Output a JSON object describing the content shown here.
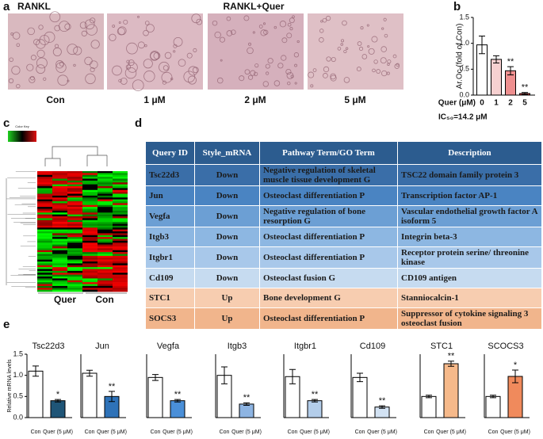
{
  "panel_labels": [
    "a",
    "b",
    "c",
    "d",
    "e"
  ],
  "panel_a": {
    "group_labels": [
      "RANKL",
      "RANKL+Quer"
    ],
    "image_labels": [
      "Con",
      "1 μM",
      "2 μM",
      "5 μM"
    ]
  },
  "panel_c": {
    "color_key": "Color Key",
    "column_labels": [
      "Quer",
      "Con"
    ]
  },
  "panel_d": {
    "header": [
      "Query ID",
      "Style_mRNA",
      "Pathway Term/GO Term",
      "Description"
    ],
    "rows": [
      [
        "Tsc22d3",
        "Down",
        "Negative regulation of skeletal muscle tissue development G",
        "TSC22 domain family protein 3"
      ],
      [
        "Jun",
        "Down",
        "Osteoclast differentiation P",
        "Transcription factor AP-1"
      ],
      [
        "Vegfa",
        "Down",
        "Negative regulation of bone resorption G",
        "Vascular endothelial growth factor A isoform 5"
      ],
      [
        "Itgb3",
        "Down",
        "Osteoclast differentiation P",
        "Integrin beta-3"
      ],
      [
        "Itgbr1",
        "Down",
        "Osteoclast differentiation P",
        "Receptor protein serine/ threonine kinase"
      ],
      [
        "Cd109",
        "Down",
        "Osteoclast fusion G",
        "CD109 antigen"
      ],
      [
        "STC1",
        "Up",
        "Bone development G",
        "Stanniocalcin-1"
      ],
      [
        "SOCS3",
        "Up",
        "Osteoclast differentiation P",
        "Suppressor of cytokine signaling 3 osteoclast fusion"
      ]
    ]
  },
  "chart_data": [
    {
      "type": "bar",
      "y_label": "Ar.Oc (fold of Con)",
      "x_label": "Quer (μM)",
      "note": "IC₅₀=14.2 μM",
      "categories": [
        "0",
        "1",
        "2",
        "5"
      ],
      "values": [
        0.97,
        0.69,
        0.47,
        0.03
      ],
      "errors": [
        0.17,
        0.07,
        0.08,
        0.02
      ],
      "colors": [
        "#ffffff",
        "#f6d0d0",
        "#ee8f8f",
        "#d83a3a"
      ],
      "significance": [
        null,
        null,
        "**",
        "**"
      ],
      "ylim": [
        0,
        1.5
      ],
      "yticks": [
        {
          "value": 0,
          "label": "0.0"
        },
        {
          "value": 0.5,
          "label": "0.5"
        },
        {
          "value": 1,
          "label": "1.0"
        },
        {
          "value": 1.5,
          "label": "1.5"
        }
      ]
    },
    {
      "type": "bar",
      "title": "Tsc22d3",
      "y_label": "Relative mRNA levels",
      "categories": [
        "Con",
        "Quer (5 μM)"
      ],
      "values": [
        1.1,
        0.4
      ],
      "errors": [
        0.12,
        0.03
      ],
      "colors": [
        "#ffffff",
        "#1f5577"
      ],
      "significance": [
        null,
        "*"
      ],
      "ylim": [
        0,
        1.5
      ],
      "yticks": [
        {
          "value": 0,
          "label": "0.0"
        },
        {
          "value": 0.5,
          "label": "0.5"
        },
        {
          "value": 1,
          "label": "1.0"
        },
        {
          "value": 1.5,
          "label": "1.5"
        }
      ]
    },
    {
      "type": "bar",
      "title": "Jun",
      "categories": [
        "Con",
        "Quer (5 μM)"
      ],
      "values": [
        1.05,
        0.5
      ],
      "errors": [
        0.07,
        0.12
      ],
      "colors": [
        "#ffffff",
        "#2e72b8"
      ],
      "significance": [
        null,
        "**"
      ],
      "ylim": [
        0,
        1.5
      ]
    },
    {
      "type": "bar",
      "title": "Vegfa",
      "categories": [
        "Con",
        "Quer (5 μM)"
      ],
      "values": [
        0.95,
        0.4
      ],
      "errors": [
        0.07,
        0.03
      ],
      "colors": [
        "#ffffff",
        "#4a8fd8"
      ],
      "significance": [
        null,
        "**"
      ],
      "ylim": [
        0,
        1.5
      ]
    },
    {
      "type": "bar",
      "title": "Itgb3",
      "categories": [
        "Con",
        "Quer (5 μM)"
      ],
      "values": [
        1.0,
        0.32
      ],
      "errors": [
        0.2,
        0.03
      ],
      "colors": [
        "#ffffff",
        "#8db4e2"
      ],
      "significance": [
        null,
        "**"
      ],
      "ylim": [
        0,
        1.5
      ]
    },
    {
      "type": "bar",
      "title": "Itgbr1",
      "categories": [
        "Con",
        "Quer (5 μM)"
      ],
      "values": [
        0.97,
        0.4
      ],
      "errors": [
        0.17,
        0.03
      ],
      "colors": [
        "#ffffff",
        "#b3cdea"
      ],
      "significance": [
        null,
        "**"
      ],
      "ylim": [
        0,
        1.5
      ]
    },
    {
      "type": "bar",
      "title": "Cd109",
      "categories": [
        "Con",
        "Quer (5 μM)"
      ],
      "values": [
        0.95,
        0.25
      ],
      "errors": [
        0.1,
        0.03
      ],
      "colors": [
        "#ffffff",
        "#d2e2f3"
      ],
      "significance": [
        null,
        "**"
      ],
      "ylim": [
        0,
        1.5
      ]
    },
    {
      "type": "bar",
      "title": "STC1",
      "categories": [
        "Con",
        "Quer (5 μM)"
      ],
      "values": [
        1.0,
        2.55
      ],
      "errors": [
        0.06,
        0.12
      ],
      "colors": [
        "#ffffff",
        "#f6b98a"
      ],
      "significance": [
        null,
        "**"
      ],
      "ylim": [
        0,
        3
      ]
    },
    {
      "type": "bar",
      "title": "SCOCS3",
      "categories": [
        "Con",
        "Quer (5 μM)"
      ],
      "values": [
        1.0,
        1.95
      ],
      "errors": [
        0.06,
        0.3
      ],
      "colors": [
        "#ffffff",
        "#f08a5c"
      ],
      "significance": [
        null,
        "*"
      ],
      "ylim": [
        0,
        3
      ]
    }
  ]
}
